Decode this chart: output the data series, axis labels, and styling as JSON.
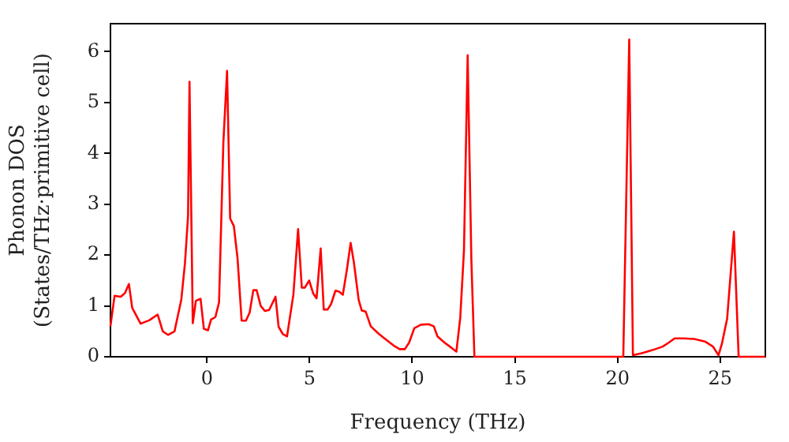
{
  "chart_data": {
    "type": "line",
    "xlabel": "Frequency (THz)",
    "ylabel": "Phonon DOS\n(States/THz·primitive cell)",
    "xlim": [
      -4.7,
      27.2
    ],
    "xticks": [
      0,
      5,
      10,
      15,
      20,
      25
    ],
    "ylim": [
      0,
      6.55
    ],
    "yticks": [
      0,
      1,
      2,
      3,
      4,
      5,
      6
    ],
    "grid": false,
    "legend": false,
    "marker": "none",
    "line_style": "solid",
    "series": [
      {
        "color": "#ff0000",
        "x": [
          -4.7,
          -4.5,
          -4.2,
          -4.0,
          -3.8,
          -3.64,
          -3.23,
          -2.8,
          -2.4,
          -2.15,
          -1.9,
          -1.58,
          -1.25,
          -1.07,
          -0.92,
          -0.85,
          -0.69,
          -0.54,
          -0.31,
          -0.15,
          0.05,
          0.2,
          0.41,
          0.59,
          0.8,
          0.98,
          1.13,
          1.31,
          1.49,
          1.69,
          1.9,
          2.08,
          2.26,
          2.42,
          2.62,
          2.82,
          3.03,
          3.34,
          3.49,
          3.69,
          3.9,
          4.21,
          4.44,
          4.62,
          4.77,
          4.98,
          5.18,
          5.34,
          5.54,
          5.69,
          5.88,
          6.05,
          6.26,
          6.44,
          6.62,
          6.82,
          7.0,
          7.16,
          7.39,
          7.54,
          7.73,
          7.98,
          8.37,
          8.75,
          9.13,
          9.39,
          9.64,
          9.85,
          10.1,
          10.42,
          10.8,
          11.05,
          11.23,
          11.57,
          11.9,
          12.15,
          12.34,
          12.52,
          12.7,
          12.88,
          13.03,
          15,
          20.28,
          20.57,
          20.75,
          21.18,
          21.7,
          22.2,
          22.5,
          22.78,
          23.23,
          23.75,
          24.26,
          24.65,
          24.92,
          25.08,
          25.34,
          25.67,
          25.9,
          27.2
        ],
        "values": [
          0.6,
          1.2,
          1.18,
          1.25,
          1.43,
          0.96,
          0.65,
          0.72,
          0.83,
          0.5,
          0.43,
          0.5,
          1.12,
          1.84,
          2.77,
          5.41,
          0.66,
          1.1,
          1.14,
          0.55,
          0.52,
          0.73,
          0.78,
          1.07,
          4.22,
          5.62,
          2.72,
          2.57,
          1.94,
          0.71,
          0.71,
          0.87,
          1.31,
          1.31,
          1.0,
          0.9,
          0.92,
          1.18,
          0.59,
          0.45,
          0.4,
          1.22,
          2.51,
          1.36,
          1.36,
          1.5,
          1.24,
          1.15,
          2.13,
          0.93,
          0.93,
          1.04,
          1.3,
          1.28,
          1.22,
          1.72,
          2.24,
          1.85,
          1.12,
          0.91,
          0.89,
          0.6,
          0.45,
          0.33,
          0.21,
          0.15,
          0.15,
          0.28,
          0.56,
          0.63,
          0.64,
          0.6,
          0.4,
          0.28,
          0.18,
          0.1,
          0.77,
          2.09,
          5.93,
          1.91,
          0,
          0,
          0,
          6.24,
          0.03,
          0.07,
          0.13,
          0.2,
          0.28,
          0.36,
          0.36,
          0.35,
          0.3,
          0.2,
          0.03,
          0.25,
          0.75,
          2.46,
          0,
          0
        ]
      }
    ]
  }
}
